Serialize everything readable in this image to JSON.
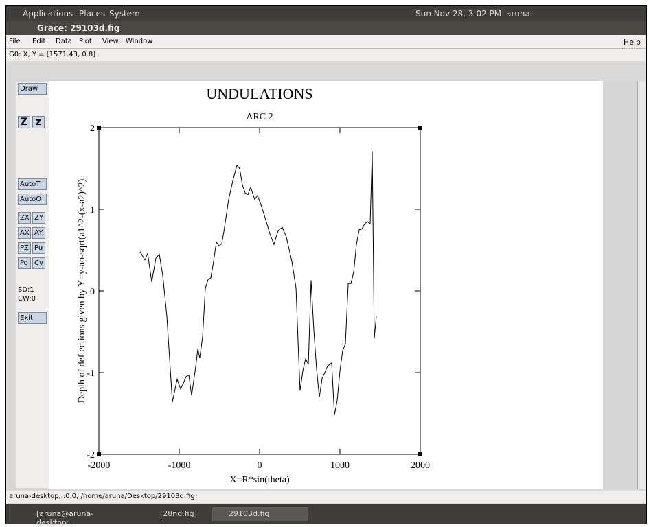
{
  "top_panel": {
    "menus": [
      "Applications",
      "Places",
      "System"
    ],
    "clock": "Sun Nov 28,  3:02 PM",
    "user": "aruna"
  },
  "window": {
    "title": "Grace: 29103d.fig",
    "menu": [
      "File",
      "Edit",
      "Data",
      "Plot",
      "View",
      "Window"
    ],
    "help": "Help",
    "locator": "G0: X, Y = [1571.43, 0.8]",
    "toolbar": [
      "Draw",
      "Z",
      "z",
      "AutoT",
      "AutoO",
      "ZX",
      "ZY",
      "AX",
      "AY",
      "PZ",
      "Pu",
      "Po",
      "Cy",
      "Exit"
    ],
    "toolbar_info": [
      "SD:1",
      "CW:0"
    ],
    "status": "aruna-desktop, :0.0, /home/aruna/Desktop/29103d.fig"
  },
  "taskbar": [
    "[aruna@aruna-desktop:...",
    "[28nd.fig]",
    "29103d.fig"
  ],
  "chart_data": {
    "type": "line",
    "title": "UNDULATIONS",
    "subtitle": "ARC 2",
    "x_label": "X=R*sin(theta)",
    "y_label": "Depth of deflections given by Y=y-ao-sqrt(a1^2-(x-a2)^2)",
    "xlim": [
      -2000,
      2000
    ],
    "ylim": [
      -2,
      2
    ],
    "xticks": [
      -2000,
      -1000,
      0,
      1000,
      2000
    ],
    "yticks": [
      -2,
      -1,
      0,
      1,
      2
    ],
    "series": [
      {
        "color": "#000000",
        "x": [
          -1487,
          -1427,
          -1393,
          -1342,
          -1291,
          -1248,
          -1205,
          -1154,
          -1085,
          -1026,
          -983,
          -949,
          -915,
          -880,
          -846,
          -795,
          -769,
          -744,
          -709,
          -675,
          -641,
          -607,
          -573,
          -538,
          -504,
          -470,
          -436,
          -385,
          -333,
          -282,
          -248,
          -214,
          -179,
          -145,
          -111,
          -60,
          -26,
          26,
          77,
          128,
          179,
          231,
          282,
          333,
          402,
          453,
          487,
          504,
          538,
          573,
          607,
          641,
          675,
          709,
          744,
          778,
          812,
          846,
          897,
          932,
          966,
          1000,
          1034,
          1068,
          1103,
          1137,
          1171,
          1205,
          1239,
          1274,
          1308,
          1342,
          1376,
          1402,
          1427,
          1453
        ],
        "values": [
          0.48,
          0.38,
          0.46,
          0.11,
          0.4,
          0.45,
          0.19,
          -0.31,
          -1.36,
          -1.08,
          -1.2,
          -1.13,
          -1.05,
          -1.03,
          -1.28,
          -0.93,
          -0.71,
          -0.82,
          -0.56,
          0.03,
          0.14,
          0.16,
          0.36,
          0.6,
          0.55,
          0.58,
          0.78,
          1.12,
          1.35,
          1.54,
          1.5,
          1.3,
          1.2,
          1.18,
          1.27,
          1.12,
          1.17,
          1.03,
          0.87,
          0.7,
          0.57,
          0.74,
          0.78,
          0.66,
          0.36,
          0.04,
          -0.82,
          -1.22,
          -0.98,
          -0.83,
          -0.9,
          0.13,
          -0.48,
          -0.95,
          -1.3,
          -1.07,
          -1.0,
          -0.92,
          -0.88,
          -1.52,
          -1.34,
          -0.98,
          -0.73,
          -0.65,
          0.09,
          0.09,
          0.23,
          0.57,
          0.75,
          0.76,
          0.82,
          0.85,
          0.82,
          1.71,
          -0.58,
          -0.31
        ]
      }
    ]
  }
}
